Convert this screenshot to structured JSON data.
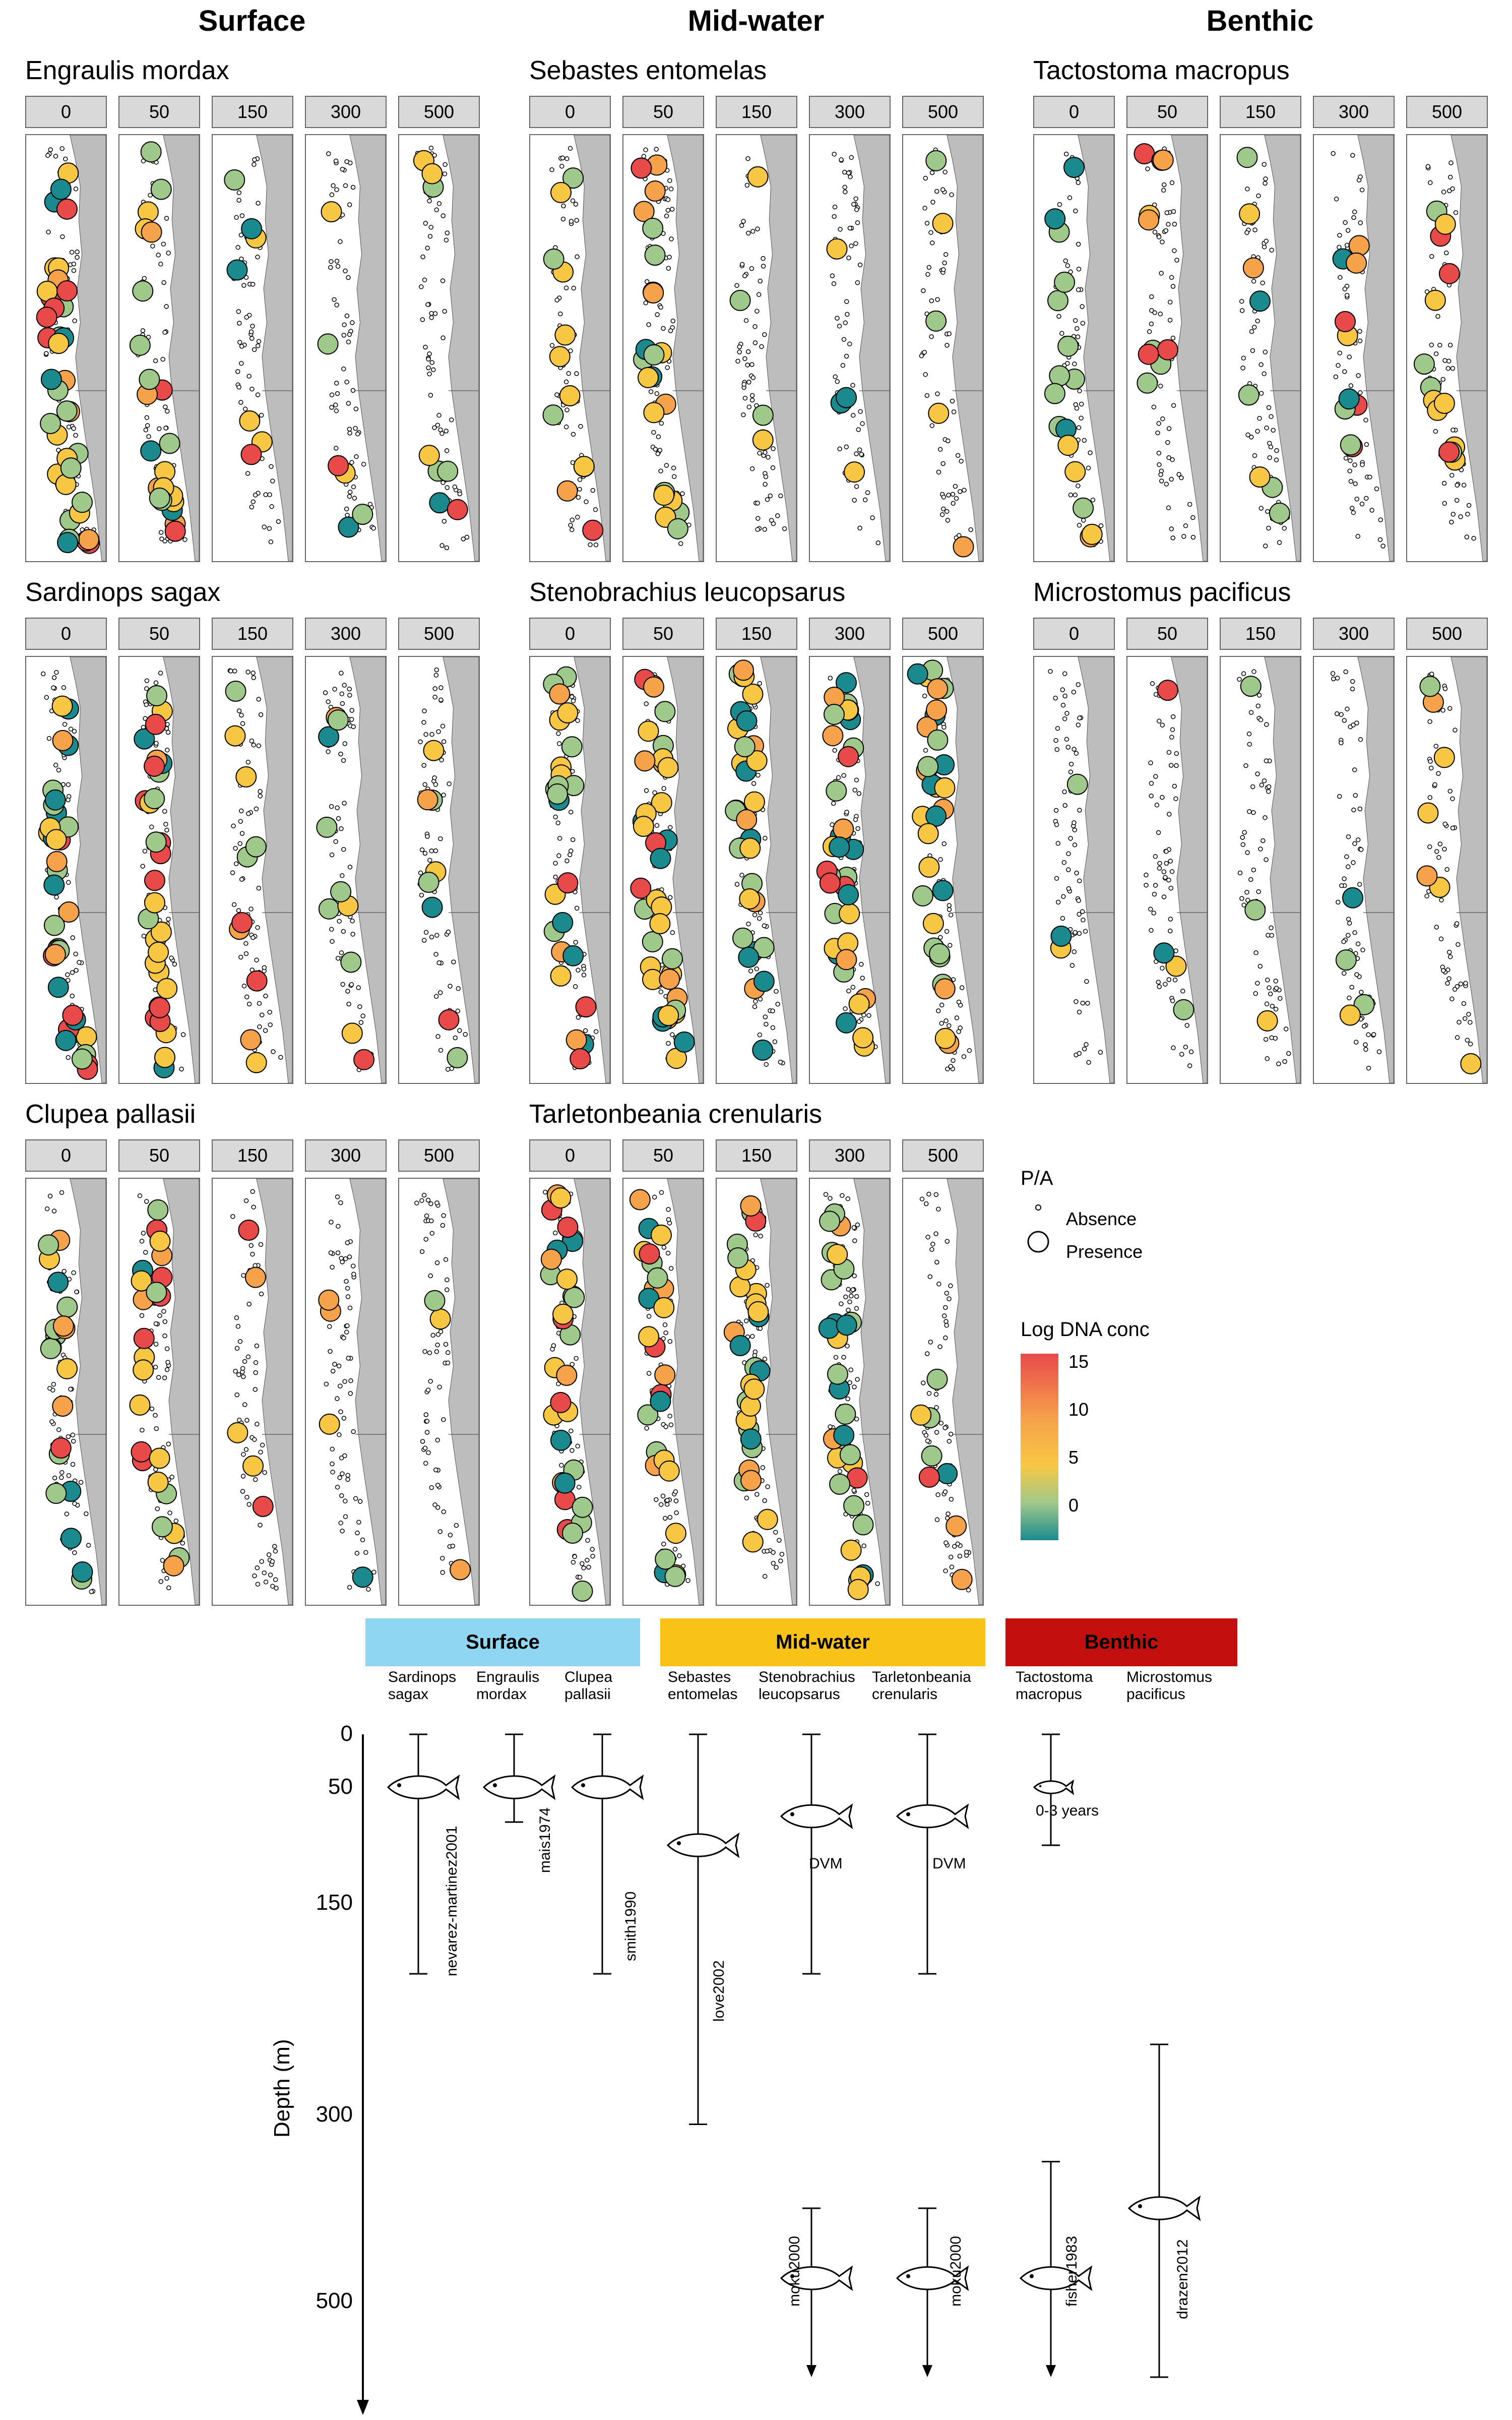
{
  "headers": {
    "surface": "Surface",
    "mid": "Mid-water",
    "benthic": "Benthic"
  },
  "depth_strips": [
    "0",
    "50",
    "150",
    "300",
    "500"
  ],
  "colors": {
    "teal": "#1b8a8f",
    "green": "#9fc98a",
    "yellow": "#f7c744",
    "orange": "#f6a24b",
    "red": "#e84a4a",
    "land": "#bdbdbd"
  },
  "chart_data": [
    {
      "type": "scatter",
      "title": "Engraulis mordax",
      "facets": [
        "0",
        "50",
        "150",
        "300",
        "500"
      ],
      "presence_samples_per_depth": [
        38,
        24,
        7,
        6,
        8
      ],
      "colorbar": "Log DNA conc"
    },
    {
      "type": "scatter",
      "title": "Sardinops sagax",
      "facets": [
        "0",
        "50",
        "150",
        "300",
        "500"
      ],
      "presence_samples_per_depth": [
        36,
        30,
        10,
        10,
        8
      ],
      "colorbar": "Log DNA conc"
    },
    {
      "type": "scatter",
      "title": "Clupea pallasii",
      "facets": [
        "0",
        "50",
        "150",
        "300",
        "500"
      ],
      "presence_samples_per_depth": [
        20,
        24,
        5,
        4,
        3
      ],
      "colorbar": "Log DNA conc"
    },
    {
      "type": "scatter",
      "title": "Sebastes entomelas",
      "facets": [
        "0",
        "50",
        "150",
        "300",
        "500"
      ],
      "presence_samples_per_depth": [
        12,
        22,
        4,
        4,
        5
      ],
      "colorbar": "Log DNA conc"
    },
    {
      "type": "scatter",
      "title": "Stenobrachius leucopsarus",
      "facets": [
        "0",
        "50",
        "150",
        "300",
        "500"
      ],
      "presence_samples_per_depth": [
        24,
        38,
        30,
        34,
        30
      ],
      "colorbar": "Log DNA conc"
    },
    {
      "type": "scatter",
      "title": "Tarletonbeania crenularis",
      "facets": [
        "0",
        "50",
        "150",
        "300",
        "500"
      ],
      "presence_samples_per_depth": [
        30,
        26,
        28,
        30,
        8
      ],
      "colorbar": "Log DNA conc"
    },
    {
      "type": "scatter",
      "title": "Tactostoma macropus",
      "facets": [
        "0",
        "50",
        "150",
        "300",
        "500"
      ],
      "presence_samples_per_depth": [
        16,
        10,
        8,
        10,
        14
      ],
      "colorbar": "Log DNA conc"
    },
    {
      "type": "scatter",
      "title": "Microstomus pacificus",
      "facets": [
        "0",
        "50",
        "150",
        "300",
        "500"
      ],
      "presence_samples_per_depth": [
        3,
        4,
        3,
        4,
        7
      ],
      "colorbar": "Log DNA conc"
    },
    {
      "type": "range",
      "title": "",
      "ylabel": "Depth (m)",
      "yticks": [
        0,
        50,
        150,
        300,
        500
      ],
      "categories": [
        {
          "name": "Surface",
          "color": "#8fd6f2",
          "species": [
            {
              "label": "Sardinops sagax",
              "range": [
                0,
                200
              ],
              "fish_at": 50,
              "ref": "nevarez-martinez2001"
            },
            {
              "label": "Engraulis mordax",
              "range": [
                0,
                80
              ],
              "fish_at": 50,
              "ref": "mais1974"
            },
            {
              "label": "Clupea pallasii",
              "range": [
                0,
                200
              ],
              "fish_at": 50,
              "ref": "smith1990"
            }
          ]
        },
        {
          "name": "Mid-water",
          "color": "#f9c217",
          "species": [
            {
              "label": "Sebastes entomelas",
              "range": [
                0,
                310
              ],
              "fish_at": 100,
              "ref": "love2002"
            },
            {
              "label": "Stenobrachius leucopsarus",
              "range": [
                0,
                200
              ],
              "fish_at": 75,
              "range2": [
                400,
                600
              ],
              "fish2_at": 475,
              "ref": "moku2000",
              "note": "DVM"
            },
            {
              "label": "Tarletonbeania crenularis",
              "range": [
                0,
                200
              ],
              "fish_at": 75,
              "range2": [
                400,
                600
              ],
              "fish2_at": 475,
              "ref": "moku2000",
              "note": "DVM"
            }
          ]
        },
        {
          "name": "Benthic",
          "color": "#c40f0f",
          "species": [
            {
              "label": "Tactostoma macropus",
              "range": [
                0,
                100
              ],
              "fish_at": 50,
              "range2": [
                350,
                600
              ],
              "fish2_at": 475,
              "ref": "fisher1983",
              "note": "0-3 years"
            },
            {
              "label": "Microstomus pacificus",
              "range": [
                250,
                600
              ],
              "fish_at": 400,
              "ref": "drazen2012"
            }
          ]
        }
      ]
    }
  ],
  "legend": {
    "pa_title": "P/A",
    "absence": "Absence",
    "presence": "Presence",
    "conc_title": "Log DNA conc",
    "conc_ticks": [
      "15",
      "10",
      "5",
      "0"
    ]
  },
  "bottom": {
    "categories": [
      "Surface",
      "Mid-water",
      "Benthic"
    ],
    "species_labels": [
      [
        "Sardinops",
        "sagax"
      ],
      [
        "Engraulis",
        "mordax"
      ],
      [
        "Clupea",
        "pallasii"
      ],
      [
        "Sebastes",
        "entomelas"
      ],
      [
        "Stenobrachius",
        "leucopsarus"
      ],
      [
        "Tarletonbeania",
        "crenularis"
      ],
      [
        "Tactostoma",
        "macropus"
      ],
      [
        "Microstomus",
        "pacificus"
      ]
    ],
    "yticks": [
      "0",
      "50",
      "150",
      "300",
      "500"
    ],
    "ylabel": "Depth (m)",
    "refs": [
      "nevarez-martinez2001",
      "mais1974",
      "smith1990",
      "love2002",
      "moku2000",
      "moku2000",
      "fisher1983",
      "drazen2012"
    ],
    "dvm": "DVM",
    "juvenile": "0-3 years"
  }
}
